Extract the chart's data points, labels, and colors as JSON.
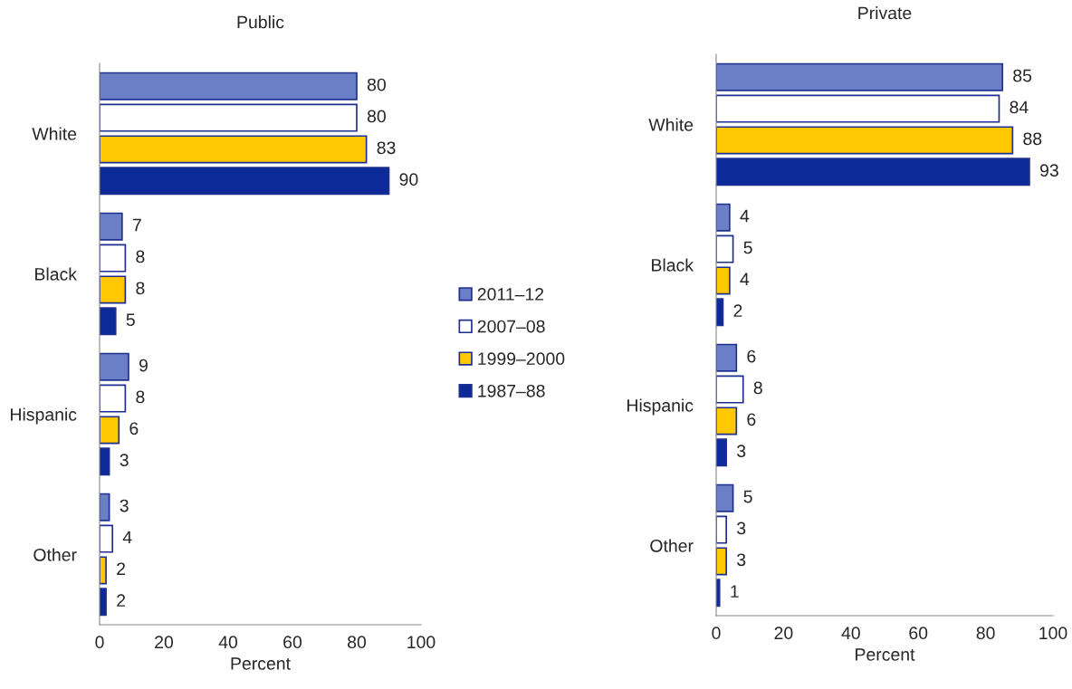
{
  "chart_data": [
    {
      "type": "bar",
      "orientation": "horizontal",
      "title": "Public",
      "xlabel": "Percent",
      "categories": [
        "White",
        "Black",
        "Hispanic",
        "Other"
      ],
      "xlim": [
        0,
        100
      ],
      "xticks": [
        0,
        20,
        40,
        60,
        80,
        100
      ],
      "grid": false,
      "legend": "right",
      "data_labels": true,
      "series": [
        {
          "name": "2011–12",
          "color": "#6a7fc6",
          "values": [
            80,
            7,
            9,
            3
          ]
        },
        {
          "name": "2007–08",
          "color": "#ffffff",
          "values": [
            80,
            8,
            8,
            4
          ]
        },
        {
          "name": "1999–2000",
          "color": "#ffc800",
          "values": [
            83,
            8,
            6,
            2
          ]
        },
        {
          "name": "1987–88",
          "color": "#0c2a98",
          "values": [
            90,
            5,
            3,
            2
          ]
        }
      ]
    },
    {
      "type": "bar",
      "orientation": "horizontal",
      "title": "Private",
      "xlabel": "Percent",
      "categories": [
        "White",
        "Black",
        "Hispanic",
        "Other"
      ],
      "xlim": [
        0,
        100
      ],
      "xticks": [
        0,
        20,
        40,
        60,
        80,
        100
      ],
      "grid": false,
      "legend": false,
      "data_labels": true,
      "series": [
        {
          "color": "#6a7fc6",
          "values": [
            85,
            4,
            6,
            5
          ]
        },
        {
          "color": "#ffffff",
          "values": [
            84,
            5,
            8,
            3
          ]
        },
        {
          "color": "#ffc800",
          "values": [
            88,
            4,
            6,
            3
          ]
        },
        {
          "color": "#0c2a98",
          "values": [
            93,
            2,
            3,
            1
          ]
        }
      ]
    }
  ]
}
